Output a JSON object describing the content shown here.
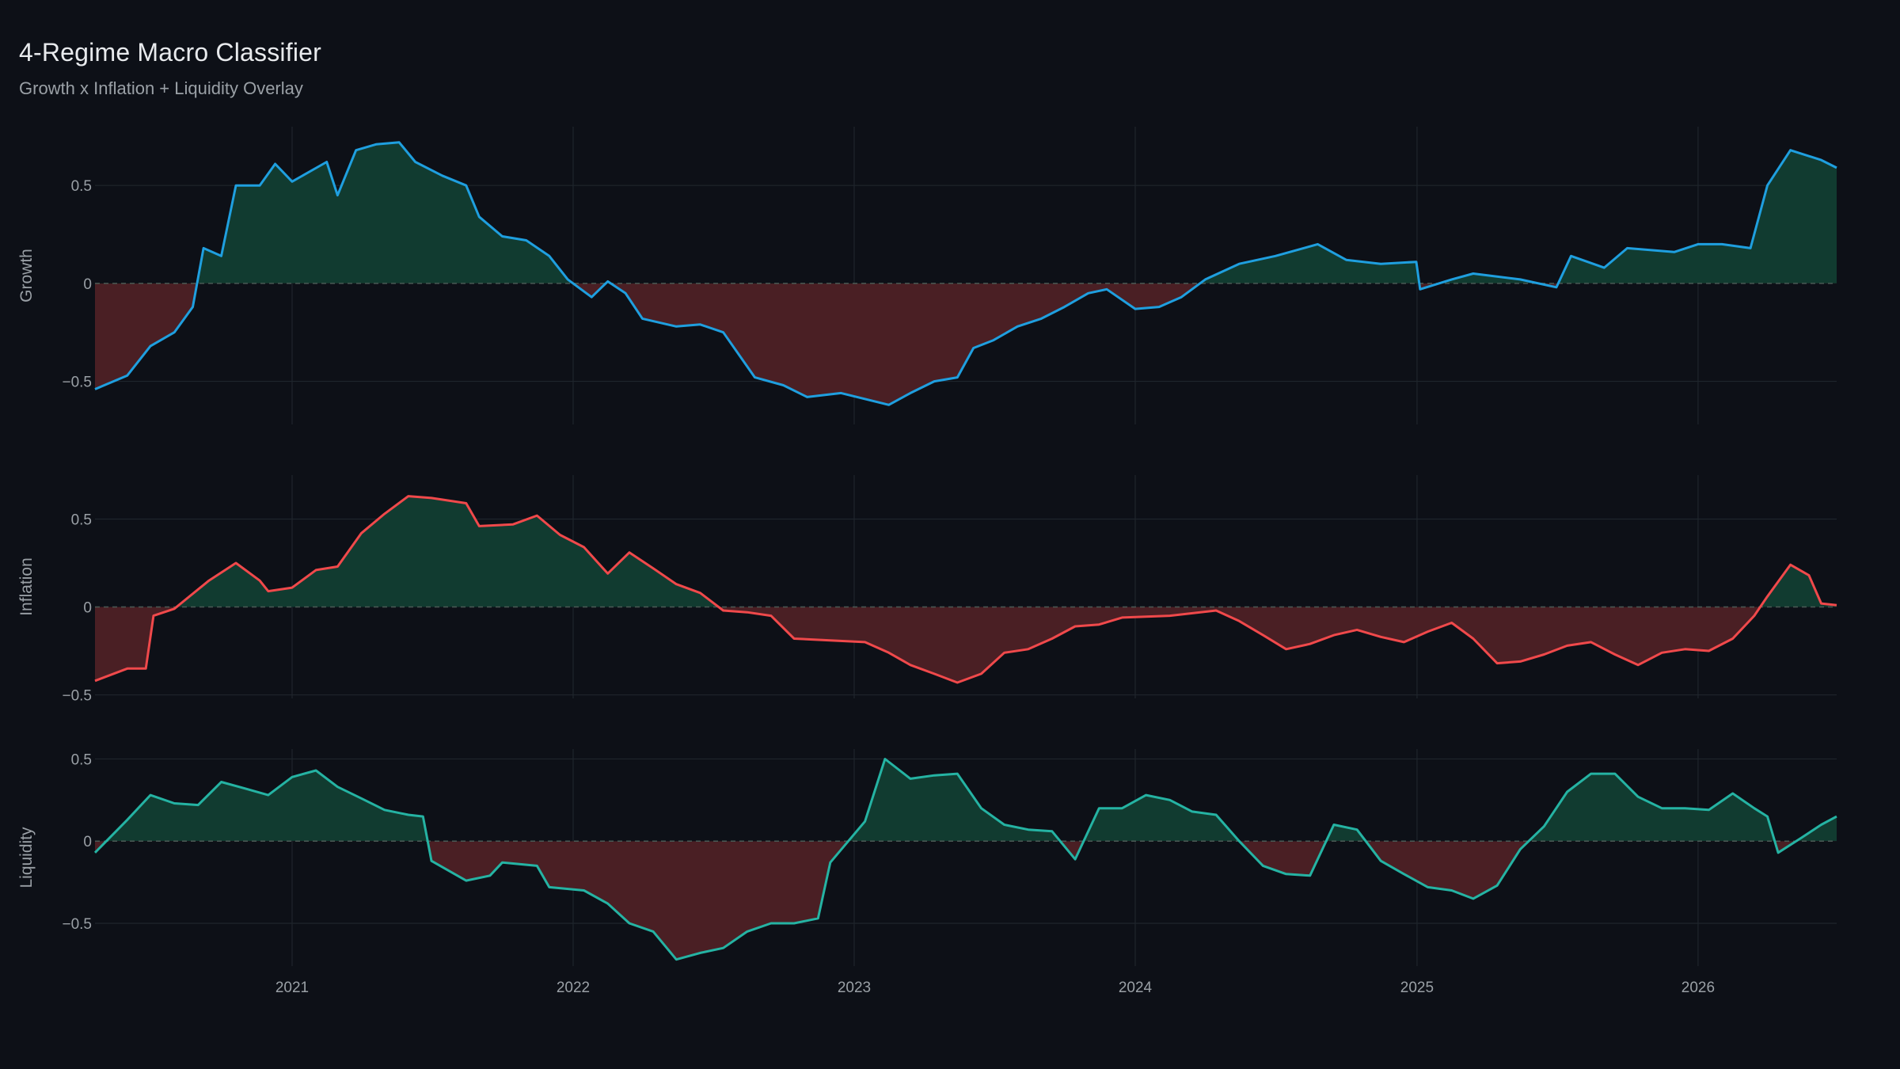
{
  "header": {
    "title": "4-Regime Macro Classifier",
    "subtitle": "Growth x Inflation + Liquidity Overlay"
  },
  "chart_data": {
    "type": "area",
    "title": "4-Regime Macro Classifier",
    "subtitle": "Growth x Inflation + Liquidity Overlay",
    "x_range": [
      "2020-04-20",
      "2026-06-30"
    ],
    "x_ticks": [
      "2021",
      "2022",
      "2023",
      "2024",
      "2025",
      "2026"
    ],
    "grid": true,
    "fill_colors": {
      "positive": "#113b30",
      "negative": "#4a1f24"
    },
    "zero_line_color": "#4a5a55",
    "series": [
      {
        "name": "Growth",
        "color": "#1f9fdf",
        "ylim": [
          -0.72,
          0.8
        ],
        "y_ticks": [
          0.5,
          0,
          -0.5
        ],
        "y_tick_labels": [
          "0.5",
          "0",
          "−0.5"
        ],
        "points": [
          [
            "2020-04-20",
            -0.54
          ],
          [
            "2020-06-01",
            -0.47
          ],
          [
            "2020-07-01",
            -0.32
          ],
          [
            "2020-08-01",
            -0.25
          ],
          [
            "2020-08-25",
            -0.12
          ],
          [
            "2020-09-08",
            0.18
          ],
          [
            "2020-10-01",
            0.14
          ],
          [
            "2020-10-20",
            0.5
          ],
          [
            "2020-11-20",
            0.5
          ],
          [
            "2020-12-10",
            0.61
          ],
          [
            "2021-01-01",
            0.52
          ],
          [
            "2021-02-15",
            0.62
          ],
          [
            "2021-03-01",
            0.45
          ],
          [
            "2021-03-25",
            0.68
          ],
          [
            "2021-04-20",
            0.71
          ],
          [
            "2021-05-20",
            0.72
          ],
          [
            "2021-06-10",
            0.62
          ],
          [
            "2021-07-15",
            0.55
          ],
          [
            "2021-08-15",
            0.5
          ],
          [
            "2021-09-01",
            0.34
          ],
          [
            "2021-10-01",
            0.24
          ],
          [
            "2021-11-01",
            0.22
          ],
          [
            "2021-12-01",
            0.14
          ],
          [
            "2021-12-25",
            0.02
          ],
          [
            "2022-01-25",
            -0.07
          ],
          [
            "2022-02-15",
            0.01
          ],
          [
            "2022-03-10",
            -0.05
          ],
          [
            "2022-04-01",
            -0.18
          ],
          [
            "2022-05-15",
            -0.22
          ],
          [
            "2022-06-15",
            -0.21
          ],
          [
            "2022-07-15",
            -0.25
          ],
          [
            "2022-08-25",
            -0.48
          ],
          [
            "2022-10-01",
            -0.52
          ],
          [
            "2022-11-01",
            -0.58
          ],
          [
            "2022-12-15",
            -0.56
          ],
          [
            "2023-02-15",
            -0.62
          ],
          [
            "2023-03-15",
            -0.56
          ],
          [
            "2023-04-15",
            -0.5
          ],
          [
            "2023-05-15",
            -0.48
          ],
          [
            "2023-06-05",
            -0.33
          ],
          [
            "2023-07-01",
            -0.29
          ],
          [
            "2023-08-01",
            -0.22
          ],
          [
            "2023-09-01",
            -0.18
          ],
          [
            "2023-10-01",
            -0.12
          ],
          [
            "2023-11-01",
            -0.05
          ],
          [
            "2023-11-25",
            -0.03
          ],
          [
            "2024-01-01",
            -0.13
          ],
          [
            "2024-02-01",
            -0.12
          ],
          [
            "2024-03-01",
            -0.07
          ],
          [
            "2024-04-01",
            0.02
          ],
          [
            "2024-05-15",
            0.1
          ],
          [
            "2024-07-01",
            0.14
          ],
          [
            "2024-08-25",
            0.2
          ],
          [
            "2024-10-01",
            0.12
          ],
          [
            "2024-11-15",
            0.1
          ],
          [
            "2024-12-31",
            0.11
          ],
          [
            "2025-01-05",
            -0.03
          ],
          [
            "2025-02-15",
            0.02
          ],
          [
            "2025-03-15",
            0.05
          ],
          [
            "2025-05-15",
            0.02
          ],
          [
            "2025-07-01",
            -0.02
          ],
          [
            "2025-07-20",
            0.14
          ],
          [
            "2025-09-01",
            0.08
          ],
          [
            "2025-10-01",
            0.18
          ],
          [
            "2025-12-01",
            0.16
          ],
          [
            "2026-01-01",
            0.2
          ],
          [
            "2026-02-01",
            0.2
          ],
          [
            "2026-03-10",
            0.18
          ],
          [
            "2026-04-01",
            0.5
          ],
          [
            "2026-05-01",
            0.68
          ],
          [
            "2026-06-10",
            0.63
          ],
          [
            "2026-06-30",
            0.59
          ]
        ]
      },
      {
        "name": "Inflation",
        "color": "#f0494b",
        "ylim": [
          -0.52,
          0.75
        ],
        "y_ticks": [
          0.5,
          0,
          -0.5
        ],
        "y_tick_labels": [
          "0.5",
          "0",
          "−0.5"
        ],
        "points": [
          [
            "2020-04-20",
            -0.42
          ],
          [
            "2020-06-01",
            -0.35
          ],
          [
            "2020-06-25",
            -0.35
          ],
          [
            "2020-07-05",
            -0.05
          ],
          [
            "2020-08-01",
            -0.01
          ],
          [
            "2020-09-15",
            0.15
          ],
          [
            "2020-10-20",
            0.25
          ],
          [
            "2020-11-20",
            0.15
          ],
          [
            "2020-12-01",
            0.09
          ],
          [
            "2021-01-01",
            0.11
          ],
          [
            "2021-02-01",
            0.21
          ],
          [
            "2021-03-01",
            0.23
          ],
          [
            "2021-04-01",
            0.42
          ],
          [
            "2021-05-01",
            0.53
          ],
          [
            "2021-06-01",
            0.63
          ],
          [
            "2021-07-01",
            0.62
          ],
          [
            "2021-08-15",
            0.59
          ],
          [
            "2021-09-01",
            0.46
          ],
          [
            "2021-10-15",
            0.47
          ],
          [
            "2021-11-15",
            0.52
          ],
          [
            "2021-12-15",
            0.41
          ],
          [
            "2022-01-15",
            0.34
          ],
          [
            "2022-02-15",
            0.19
          ],
          [
            "2022-03-15",
            0.31
          ],
          [
            "2022-04-15",
            0.22
          ],
          [
            "2022-05-15",
            0.13
          ],
          [
            "2022-06-15",
            0.08
          ],
          [
            "2022-07-15",
            -0.02
          ],
          [
            "2022-08-15",
            -0.03
          ],
          [
            "2022-09-15",
            -0.05
          ],
          [
            "2022-10-15",
            -0.18
          ],
          [
            "2022-12-01",
            -0.19
          ],
          [
            "2023-01-15",
            -0.2
          ],
          [
            "2023-02-15",
            -0.26
          ],
          [
            "2023-03-15",
            -0.33
          ],
          [
            "2023-04-15",
            -0.38
          ],
          [
            "2023-05-15",
            -0.43
          ],
          [
            "2023-06-15",
            -0.38
          ],
          [
            "2023-07-15",
            -0.26
          ],
          [
            "2023-08-15",
            -0.24
          ],
          [
            "2023-09-15",
            -0.18
          ],
          [
            "2023-10-15",
            -0.11
          ],
          [
            "2023-11-15",
            -0.1
          ],
          [
            "2023-12-15",
            -0.06
          ],
          [
            "2024-02-15",
            -0.05
          ],
          [
            "2024-04-15",
            -0.02
          ],
          [
            "2024-05-15",
            -0.08
          ],
          [
            "2024-06-15",
            -0.16
          ],
          [
            "2024-07-15",
            -0.24
          ],
          [
            "2024-08-15",
            -0.21
          ],
          [
            "2024-09-15",
            -0.16
          ],
          [
            "2024-10-15",
            -0.13
          ],
          [
            "2024-11-15",
            -0.17
          ],
          [
            "2024-12-15",
            -0.2
          ],
          [
            "2025-01-15",
            -0.14
          ],
          [
            "2025-02-15",
            -0.09
          ],
          [
            "2025-03-15",
            -0.18
          ],
          [
            "2025-04-15",
            -0.32
          ],
          [
            "2025-05-15",
            -0.31
          ],
          [
            "2025-06-15",
            -0.27
          ],
          [
            "2025-07-15",
            -0.22
          ],
          [
            "2025-08-15",
            -0.2
          ],
          [
            "2025-09-15",
            -0.27
          ],
          [
            "2025-10-15",
            -0.33
          ],
          [
            "2025-11-15",
            -0.26
          ],
          [
            "2025-12-15",
            -0.24
          ],
          [
            "2026-01-15",
            -0.25
          ],
          [
            "2026-02-15",
            -0.18
          ],
          [
            "2026-03-15",
            -0.05
          ],
          [
            "2026-04-01",
            0.06
          ],
          [
            "2026-05-01",
            0.24
          ],
          [
            "2026-05-25",
            0.18
          ],
          [
            "2026-06-10",
            0.02
          ],
          [
            "2026-06-30",
            0.01
          ]
        ]
      },
      {
        "name": "Liquidity",
        "color": "#25b3a3",
        "ylim": [
          -0.76,
          0.56
        ],
        "y_ticks": [
          0.5,
          0,
          -0.5
        ],
        "y_tick_labels": [
          "0.5",
          "0",
          "−0.5"
        ],
        "points": [
          [
            "2020-04-20",
            -0.07
          ],
          [
            "2020-06-01",
            0.13
          ],
          [
            "2020-07-01",
            0.28
          ],
          [
            "2020-08-01",
            0.23
          ],
          [
            "2020-09-01",
            0.22
          ],
          [
            "2020-10-01",
            0.36
          ],
          [
            "2020-11-01",
            0.32
          ],
          [
            "2020-12-01",
            0.28
          ],
          [
            "2021-01-01",
            0.39
          ],
          [
            "2021-02-01",
            0.43
          ],
          [
            "2021-03-01",
            0.33
          ],
          [
            "2021-04-01",
            0.26
          ],
          [
            "2021-05-01",
            0.19
          ],
          [
            "2021-06-01",
            0.16
          ],
          [
            "2021-06-20",
            0.15
          ],
          [
            "2021-07-01",
            -0.12
          ],
          [
            "2021-08-15",
            -0.24
          ],
          [
            "2021-09-15",
            -0.21
          ],
          [
            "2021-10-01",
            -0.13
          ],
          [
            "2021-11-15",
            -0.15
          ],
          [
            "2021-12-01",
            -0.28
          ],
          [
            "2022-01-15",
            -0.3
          ],
          [
            "2022-02-15",
            -0.38
          ],
          [
            "2022-03-15",
            -0.5
          ],
          [
            "2022-04-15",
            -0.55
          ],
          [
            "2022-05-15",
            -0.72
          ],
          [
            "2022-06-15",
            -0.68
          ],
          [
            "2022-07-15",
            -0.65
          ],
          [
            "2022-08-15",
            -0.55
          ],
          [
            "2022-09-15",
            -0.5
          ],
          [
            "2022-10-15",
            -0.5
          ],
          [
            "2022-11-15",
            -0.47
          ],
          [
            "2022-12-01",
            -0.13
          ],
          [
            "2023-01-15",
            0.12
          ],
          [
            "2023-02-10",
            0.5
          ],
          [
            "2023-03-15",
            0.38
          ],
          [
            "2023-04-15",
            0.4
          ],
          [
            "2023-05-15",
            0.41
          ],
          [
            "2023-06-15",
            0.2
          ],
          [
            "2023-07-15",
            0.1
          ],
          [
            "2023-08-15",
            0.07
          ],
          [
            "2023-09-15",
            0.06
          ],
          [
            "2023-10-15",
            -0.11
          ],
          [
            "2023-11-15",
            0.2
          ],
          [
            "2023-12-15",
            0.2
          ],
          [
            "2024-01-15",
            0.28
          ],
          [
            "2024-02-15",
            0.25
          ],
          [
            "2024-03-15",
            0.18
          ],
          [
            "2024-04-15",
            0.16
          ],
          [
            "2024-05-15",
            0.0
          ],
          [
            "2024-06-15",
            -0.15
          ],
          [
            "2024-07-15",
            -0.2
          ],
          [
            "2024-08-15",
            -0.21
          ],
          [
            "2024-09-15",
            0.1
          ],
          [
            "2024-10-15",
            0.07
          ],
          [
            "2024-11-15",
            -0.12
          ],
          [
            "2024-12-15",
            -0.2
          ],
          [
            "2025-01-15",
            -0.28
          ],
          [
            "2025-02-15",
            -0.3
          ],
          [
            "2025-03-15",
            -0.35
          ],
          [
            "2025-04-15",
            -0.27
          ],
          [
            "2025-05-15",
            -0.05
          ],
          [
            "2025-06-15",
            0.09
          ],
          [
            "2025-07-15",
            0.3
          ],
          [
            "2025-08-15",
            0.41
          ],
          [
            "2025-09-15",
            0.41
          ],
          [
            "2025-10-15",
            0.27
          ],
          [
            "2025-11-15",
            0.2
          ],
          [
            "2025-12-15",
            0.2
          ],
          [
            "2026-01-15",
            0.19
          ],
          [
            "2026-02-15",
            0.29
          ],
          [
            "2026-03-15",
            0.2
          ],
          [
            "2026-04-01",
            0.15
          ],
          [
            "2026-04-15",
            -0.07
          ],
          [
            "2026-05-15",
            0.02
          ],
          [
            "2026-06-10",
            0.1
          ],
          [
            "2026-06-30",
            0.15
          ]
        ]
      }
    ]
  }
}
